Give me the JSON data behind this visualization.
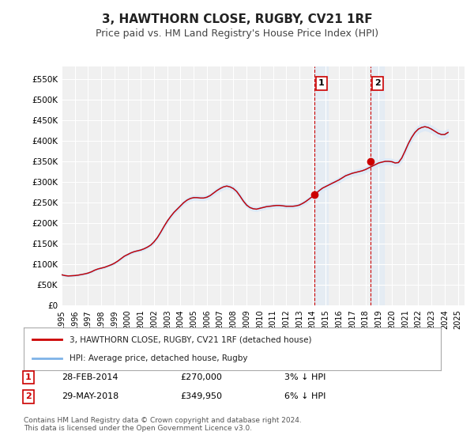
{
  "title": "3, HAWTHORN CLOSE, RUGBY, CV21 1RF",
  "subtitle": "Price paid vs. HM Land Registry's House Price Index (HPI)",
  "legend_line1": "3, HAWTHORN CLOSE, RUGBY, CV21 1RF (detached house)",
  "legend_line2": "HPI: Average price, detached house, Rugby",
  "annotation1_label": "1",
  "annotation1_date": "28-FEB-2014",
  "annotation1_price": "£270,000",
  "annotation1_hpi": "3% ↓ HPI",
  "annotation1_year": 2014.16,
  "annotation1_value": 270000,
  "annotation2_label": "2",
  "annotation2_date": "29-MAY-2018",
  "annotation2_price": "£349,950",
  "annotation2_hpi": "6% ↓ HPI",
  "annotation2_year": 2018.41,
  "annotation2_value": 349950,
  "footer": "Contains HM Land Registry data © Crown copyright and database right 2024.\nThis data is licensed under the Open Government Licence v3.0.",
  "ylim": [
    0,
    580000
  ],
  "xlim_start": 1995.0,
  "xlim_end": 2025.5,
  "background_color": "#ffffff",
  "plot_bg_color": "#f0f0f0",
  "shade_color": "#dce9f7",
  "hpi_color": "#7fb3e8",
  "price_color": "#cc0000",
  "vline_color": "#cc0000",
  "grid_color": "#ffffff",
  "title_fontsize": 11,
  "subtitle_fontsize": 9,
  "ytick_labels": [
    "£0",
    "£50K",
    "£100K",
    "£150K",
    "£200K",
    "£250K",
    "£300K",
    "£350K",
    "£400K",
    "£450K",
    "£500K",
    "£550K"
  ],
  "ytick_values": [
    0,
    50000,
    100000,
    150000,
    200000,
    250000,
    300000,
    350000,
    400000,
    450000,
    500000,
    550000
  ],
  "hpi_data": {
    "years": [
      1995.0,
      1995.25,
      1995.5,
      1995.75,
      1996.0,
      1996.25,
      1996.5,
      1996.75,
      1997.0,
      1997.25,
      1997.5,
      1997.75,
      1998.0,
      1998.25,
      1998.5,
      1998.75,
      1999.0,
      1999.25,
      1999.5,
      1999.75,
      2000.0,
      2000.25,
      2000.5,
      2000.75,
      2001.0,
      2001.25,
      2001.5,
      2001.75,
      2002.0,
      2002.25,
      2002.5,
      2002.75,
      2003.0,
      2003.25,
      2003.5,
      2003.75,
      2004.0,
      2004.25,
      2004.5,
      2004.75,
      2005.0,
      2005.25,
      2005.5,
      2005.75,
      2006.0,
      2006.25,
      2006.5,
      2006.75,
      2007.0,
      2007.25,
      2007.5,
      2007.75,
      2008.0,
      2008.25,
      2008.5,
      2008.75,
      2009.0,
      2009.25,
      2009.5,
      2009.75,
      2010.0,
      2010.25,
      2010.5,
      2010.75,
      2011.0,
      2011.25,
      2011.5,
      2011.75,
      2012.0,
      2012.25,
      2012.5,
      2012.75,
      2013.0,
      2013.25,
      2013.5,
      2013.75,
      2014.0,
      2014.25,
      2014.5,
      2014.75,
      2015.0,
      2015.25,
      2015.5,
      2015.75,
      2016.0,
      2016.25,
      2016.5,
      2016.75,
      2017.0,
      2017.25,
      2017.5,
      2017.75,
      2018.0,
      2018.25,
      2018.5,
      2018.75,
      2019.0,
      2019.25,
      2019.5,
      2019.75,
      2020.0,
      2020.25,
      2020.5,
      2020.75,
      2021.0,
      2021.25,
      2021.5,
      2021.75,
      2022.0,
      2022.25,
      2022.5,
      2022.75,
      2023.0,
      2023.25,
      2023.5,
      2023.75,
      2024.0,
      2024.25
    ],
    "values": [
      75000,
      73000,
      72000,
      72500,
      73000,
      74000,
      75500,
      77000,
      79000,
      82000,
      86000,
      89000,
      91000,
      93000,
      96000,
      99000,
      103000,
      108000,
      114000,
      120000,
      124000,
      128000,
      131000,
      133000,
      135000,
      138000,
      142000,
      147000,
      155000,
      165000,
      178000,
      192000,
      205000,
      216000,
      226000,
      234000,
      242000,
      250000,
      256000,
      260000,
      262000,
      262000,
      261000,
      261000,
      263000,
      267000,
      273000,
      279000,
      284000,
      288000,
      290000,
      288000,
      284000,
      277000,
      266000,
      254000,
      244000,
      238000,
      235000,
      234000,
      236000,
      238000,
      240000,
      241000,
      242000,
      243000,
      243000,
      242000,
      241000,
      241000,
      241000,
      242000,
      244000,
      248000,
      253000,
      259000,
      265000,
      272000,
      279000,
      285000,
      289000,
      293000,
      297000,
      301000,
      305000,
      310000,
      315000,
      318000,
      321000,
      323000,
      325000,
      327000,
      330000,
      334000,
      338000,
      342000,
      346000,
      348000,
      350000,
      350000,
      349000,
      346000,
      347000,
      358000,
      375000,
      393000,
      408000,
      420000,
      428000,
      432000,
      434000,
      432000,
      428000,
      423000,
      418000,
      415000,
      415000,
      420000
    ]
  },
  "price_events": [
    {
      "year": 2014.16,
      "value": 270000
    },
    {
      "year": 2018.41,
      "value": 349950
    }
  ]
}
